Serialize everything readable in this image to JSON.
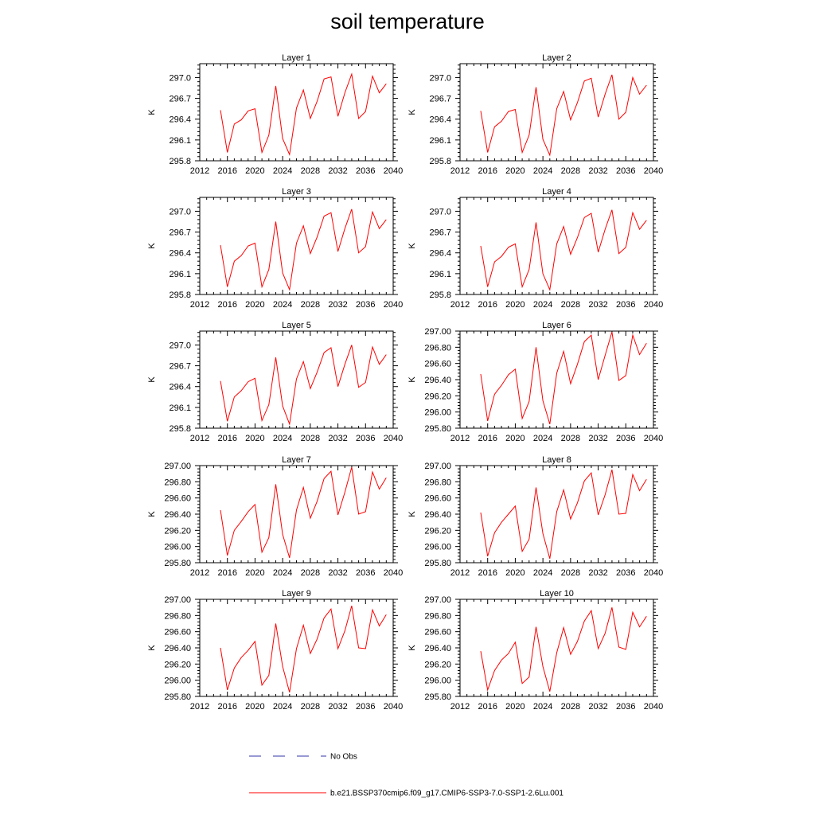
{
  "figure": {
    "title": "soil temperature",
    "ylabel": "K",
    "legend": {
      "obs_label": "No Obs",
      "series_label": "b.e21.BSSP370cmip6.f09_g17.CMIP6-SSP3-7.0-SSP1-2.6Lu.001",
      "colors": {
        "series": "#ff0000",
        "obs": "#3333aa"
      }
    }
  },
  "chart_data": [
    {
      "type": "line",
      "title": "Layer 1",
      "ylabel": "K",
      "xlim": [
        2012,
        2040
      ],
      "xticks": [
        "2012",
        "2016",
        "2020",
        "2024",
        "2028",
        "2032",
        "2036",
        "2040"
      ],
      "ylim": [
        295.8,
        297.2
      ],
      "yticks": [
        "295.8",
        "296.1",
        "296.4",
        "296.7",
        "297.0"
      ],
      "series": [
        {
          "name": "b.e21.BSSP370cmip6.f09_g17.CMIP6-SSP3-7.0-SSP1-2.6Lu.001",
          "x": [
            2015,
            2016,
            2017,
            2018,
            2019,
            2020,
            2021,
            2022,
            2023,
            2024,
            2025,
            2026,
            2027,
            2028,
            2029,
            2030,
            2031,
            2032,
            2033,
            2034,
            2035,
            2036,
            2037,
            2038,
            2039
          ],
          "y": [
            296.53,
            295.92,
            296.33,
            296.39,
            296.52,
            296.55,
            295.92,
            296.17,
            296.88,
            296.12,
            295.89,
            296.56,
            296.82,
            296.41,
            296.66,
            296.98,
            297.01,
            296.44,
            296.78,
            297.05,
            296.41,
            296.51,
            297.02,
            296.78,
            296.91
          ]
        }
      ]
    },
    {
      "type": "line",
      "title": "Layer 2",
      "ylabel": "K",
      "xlim": [
        2012,
        2040
      ],
      "xticks": [
        "2012",
        "2016",
        "2020",
        "2024",
        "2028",
        "2032",
        "2036",
        "2040"
      ],
      "ylim": [
        295.8,
        297.2
      ],
      "yticks": [
        "295.8",
        "296.1",
        "296.4",
        "296.7",
        "297.0"
      ],
      "series": [
        {
          "name": "b.e21.BSSP370cmip6.f09_g17.CMIP6-SSP3-7.0-SSP1-2.6Lu.001",
          "x": [
            2015,
            2016,
            2017,
            2018,
            2019,
            2020,
            2021,
            2022,
            2023,
            2024,
            2025,
            2026,
            2027,
            2028,
            2029,
            2030,
            2031,
            2032,
            2033,
            2034,
            2035,
            2036,
            2037,
            2038,
            2039
          ],
          "y": [
            296.52,
            295.92,
            296.29,
            296.37,
            296.51,
            296.54,
            295.92,
            296.17,
            296.86,
            296.11,
            295.88,
            296.55,
            296.8,
            296.39,
            296.64,
            296.95,
            296.99,
            296.43,
            296.76,
            297.04,
            296.4,
            296.5,
            297.0,
            296.76,
            296.89
          ]
        }
      ]
    },
    {
      "type": "line",
      "title": "Layer 3",
      "ylabel": "K",
      "xlim": [
        2012,
        2040
      ],
      "xticks": [
        "2012",
        "2016",
        "2020",
        "2024",
        "2028",
        "2032",
        "2036",
        "2040"
      ],
      "ylim": [
        295.8,
        297.2
      ],
      "yticks": [
        "295.8",
        "296.1",
        "296.4",
        "296.7",
        "297.0"
      ],
      "series": [
        {
          "name": "b.e21.BSSP370cmip6.f09_g17.CMIP6-SSP3-7.0-SSP1-2.6Lu.001",
          "x": [
            2015,
            2016,
            2017,
            2018,
            2019,
            2020,
            2021,
            2022,
            2023,
            2024,
            2025,
            2026,
            2027,
            2028,
            2029,
            2030,
            2031,
            2032,
            2033,
            2034,
            2035,
            2036,
            2037,
            2038,
            2039
          ],
          "y": [
            296.51,
            295.91,
            296.28,
            296.36,
            296.5,
            296.54,
            295.91,
            296.16,
            296.85,
            296.11,
            295.87,
            296.54,
            296.79,
            296.39,
            296.63,
            296.93,
            296.98,
            296.42,
            296.75,
            297.03,
            296.4,
            296.49,
            296.99,
            296.75,
            296.88
          ]
        }
      ]
    },
    {
      "type": "line",
      "title": "Layer 4",
      "ylabel": "K",
      "xlim": [
        2012,
        2040
      ],
      "xticks": [
        "2012",
        "2016",
        "2020",
        "2024",
        "2028",
        "2032",
        "2036",
        "2040"
      ],
      "ylim": [
        295.8,
        297.2
      ],
      "yticks": [
        "295.8",
        "296.1",
        "296.4",
        "296.7",
        "297.0"
      ],
      "series": [
        {
          "name": "b.e21.BSSP370cmip6.f09_g17.CMIP6-SSP3-7.0-SSP1-2.6Lu.001",
          "x": [
            2015,
            2016,
            2017,
            2018,
            2019,
            2020,
            2021,
            2022,
            2023,
            2024,
            2025,
            2026,
            2027,
            2028,
            2029,
            2030,
            2031,
            2032,
            2033,
            2034,
            2035,
            2036,
            2037,
            2038,
            2039
          ],
          "y": [
            296.5,
            295.91,
            296.27,
            296.35,
            296.48,
            296.53,
            295.91,
            296.16,
            296.84,
            296.1,
            295.87,
            296.53,
            296.78,
            296.38,
            296.62,
            296.91,
            296.97,
            296.41,
            296.74,
            297.02,
            296.39,
            296.48,
            296.98,
            296.74,
            296.87
          ]
        }
      ]
    },
    {
      "type": "line",
      "title": "Layer 5",
      "ylabel": "K",
      "xlim": [
        2012,
        2040
      ],
      "xticks": [
        "2012",
        "2016",
        "2020",
        "2024",
        "2028",
        "2032",
        "2036",
        "2040"
      ],
      "ylim": [
        295.8,
        297.2
      ],
      "yticks": [
        "295.8",
        "296.1",
        "296.4",
        "296.7",
        "297.0"
      ],
      "series": [
        {
          "name": "b.e21.BSSP370cmip6.f09_g17.CMIP6-SSP3-7.0-SSP1-2.6Lu.001",
          "x": [
            2015,
            2016,
            2017,
            2018,
            2019,
            2020,
            2021,
            2022,
            2023,
            2024,
            2025,
            2026,
            2027,
            2028,
            2029,
            2030,
            2031,
            2032,
            2033,
            2034,
            2035,
            2036,
            2037,
            2038,
            2039
          ],
          "y": [
            296.48,
            295.9,
            296.25,
            296.34,
            296.47,
            296.52,
            295.91,
            296.14,
            296.82,
            296.12,
            295.86,
            296.51,
            296.76,
            296.37,
            296.61,
            296.89,
            296.96,
            296.4,
            296.72,
            297.0,
            296.39,
            296.46,
            296.97,
            296.72,
            296.86
          ]
        }
      ]
    },
    {
      "type": "line",
      "title": "Layer 6",
      "ylabel": "K",
      "xlim": [
        2012,
        2040
      ],
      "xticks": [
        "2012",
        "2016",
        "2020",
        "2024",
        "2028",
        "2032",
        "2036",
        "2040"
      ],
      "ylim": [
        295.8,
        297.0
      ],
      "yticks": [
        "295.80",
        "296.00",
        "296.20",
        "296.40",
        "296.60",
        "296.80",
        "297.00"
      ],
      "series": [
        {
          "name": "b.e21.BSSP370cmip6.f09_g17.CMIP6-SSP3-7.0-SSP1-2.6Lu.001",
          "x": [
            2015,
            2016,
            2017,
            2018,
            2019,
            2020,
            2021,
            2022,
            2023,
            2024,
            2025,
            2026,
            2027,
            2028,
            2029,
            2030,
            2031,
            2032,
            2033,
            2034,
            2035,
            2036,
            2037,
            2038,
            2039
          ],
          "y": [
            296.47,
            295.89,
            296.22,
            296.33,
            296.46,
            296.53,
            295.92,
            296.13,
            296.8,
            296.14,
            295.85,
            296.48,
            296.75,
            296.35,
            296.59,
            296.87,
            296.95,
            296.4,
            296.7,
            296.99,
            296.39,
            296.45,
            296.95,
            296.71,
            296.85
          ]
        }
      ]
    },
    {
      "type": "line",
      "title": "Layer 7",
      "ylabel": "K",
      "xlim": [
        2012,
        2040
      ],
      "xticks": [
        "2012",
        "2016",
        "2020",
        "2024",
        "2028",
        "2032",
        "2036",
        "2040"
      ],
      "ylim": [
        295.8,
        297.0
      ],
      "yticks": [
        "295.80",
        "296.00",
        "296.20",
        "296.40",
        "296.60",
        "296.80",
        "297.00"
      ],
      "series": [
        {
          "name": "b.e21.BSSP370cmip6.f09_g17.CMIP6-SSP3-7.0-SSP1-2.6Lu.001",
          "x": [
            2015,
            2016,
            2017,
            2018,
            2019,
            2020,
            2021,
            2022,
            2023,
            2024,
            2025,
            2026,
            2027,
            2028,
            2029,
            2030,
            2031,
            2032,
            2033,
            2034,
            2035,
            2036,
            2037,
            2038,
            2039
          ],
          "y": [
            296.45,
            295.89,
            296.2,
            296.31,
            296.43,
            296.52,
            295.93,
            296.11,
            296.77,
            296.15,
            295.86,
            296.45,
            296.73,
            296.35,
            296.56,
            296.84,
            296.93,
            296.39,
            296.67,
            296.98,
            296.4,
            296.43,
            296.92,
            296.71,
            296.85
          ]
        }
      ]
    },
    {
      "type": "line",
      "title": "Layer 8",
      "ylabel": "K",
      "xlim": [
        2012,
        2040
      ],
      "xticks": [
        "2012",
        "2016",
        "2020",
        "2024",
        "2028",
        "2032",
        "2036",
        "2040"
      ],
      "ylim": [
        295.8,
        297.0
      ],
      "yticks": [
        "295.80",
        "296.00",
        "296.20",
        "296.40",
        "296.60",
        "296.80",
        "297.00"
      ],
      "series": [
        {
          "name": "b.e21.BSSP370cmip6.f09_g17.CMIP6-SSP3-7.0-SSP1-2.6Lu.001",
          "x": [
            2015,
            2016,
            2017,
            2018,
            2019,
            2020,
            2021,
            2022,
            2023,
            2024,
            2025,
            2026,
            2027,
            2028,
            2029,
            2030,
            2031,
            2032,
            2033,
            2034,
            2035,
            2036,
            2037,
            2038,
            2039
          ],
          "y": [
            296.42,
            295.88,
            296.17,
            296.3,
            296.4,
            296.5,
            295.94,
            296.09,
            296.73,
            296.16,
            295.85,
            296.43,
            296.7,
            296.34,
            296.54,
            296.81,
            296.91,
            296.39,
            296.64,
            296.95,
            296.4,
            296.41,
            296.89,
            296.69,
            296.83
          ]
        }
      ]
    },
    {
      "type": "line",
      "title": "Layer 9",
      "ylabel": "K",
      "xlim": [
        2012,
        2040
      ],
      "xticks": [
        "2012",
        "2016",
        "2020",
        "2024",
        "2028",
        "2032",
        "2036",
        "2040"
      ],
      "ylim": [
        295.8,
        297.0
      ],
      "yticks": [
        "295.80",
        "296.00",
        "296.20",
        "296.40",
        "296.60",
        "296.80",
        "297.00"
      ],
      "series": [
        {
          "name": "b.e21.BSSP370cmip6.f09_g17.CMIP6-SSP3-7.0-SSP1-2.6Lu.001",
          "x": [
            2015,
            2016,
            2017,
            2018,
            2019,
            2020,
            2021,
            2022,
            2023,
            2024,
            2025,
            2026,
            2027,
            2028,
            2029,
            2030,
            2031,
            2032,
            2033,
            2034,
            2035,
            2036,
            2037,
            2038,
            2039
          ],
          "y": [
            296.4,
            295.88,
            296.15,
            296.28,
            296.37,
            296.48,
            295.94,
            296.06,
            296.7,
            296.17,
            295.85,
            296.39,
            296.68,
            296.33,
            296.51,
            296.77,
            296.88,
            296.39,
            296.61,
            296.92,
            296.4,
            296.39,
            296.87,
            296.67,
            296.81
          ]
        }
      ]
    },
    {
      "type": "line",
      "title": "Layer 10",
      "ylabel": "K",
      "xlim": [
        2012,
        2040
      ],
      "xticks": [
        "2012",
        "2016",
        "2020",
        "2024",
        "2028",
        "2032",
        "2036",
        "2040"
      ],
      "ylim": [
        295.8,
        297.0
      ],
      "yticks": [
        "295.80",
        "296.00",
        "296.20",
        "296.40",
        "296.60",
        "296.80",
        "297.00"
      ],
      "series": [
        {
          "name": "b.e21.BSSP370cmip6.f09_g17.CMIP6-SSP3-7.0-SSP1-2.6Lu.001",
          "x": [
            2015,
            2016,
            2017,
            2018,
            2019,
            2020,
            2021,
            2022,
            2023,
            2024,
            2025,
            2026,
            2027,
            2028,
            2029,
            2030,
            2031,
            2032,
            2033,
            2034,
            2035,
            2036,
            2037,
            2038,
            2039
          ],
          "y": [
            296.36,
            295.88,
            296.12,
            296.25,
            296.33,
            296.47,
            295.96,
            296.04,
            296.66,
            296.17,
            295.86,
            296.34,
            296.65,
            296.32,
            296.48,
            296.73,
            296.86,
            296.39,
            296.58,
            296.9,
            296.41,
            296.38,
            296.84,
            296.66,
            296.79
          ]
        }
      ]
    }
  ]
}
